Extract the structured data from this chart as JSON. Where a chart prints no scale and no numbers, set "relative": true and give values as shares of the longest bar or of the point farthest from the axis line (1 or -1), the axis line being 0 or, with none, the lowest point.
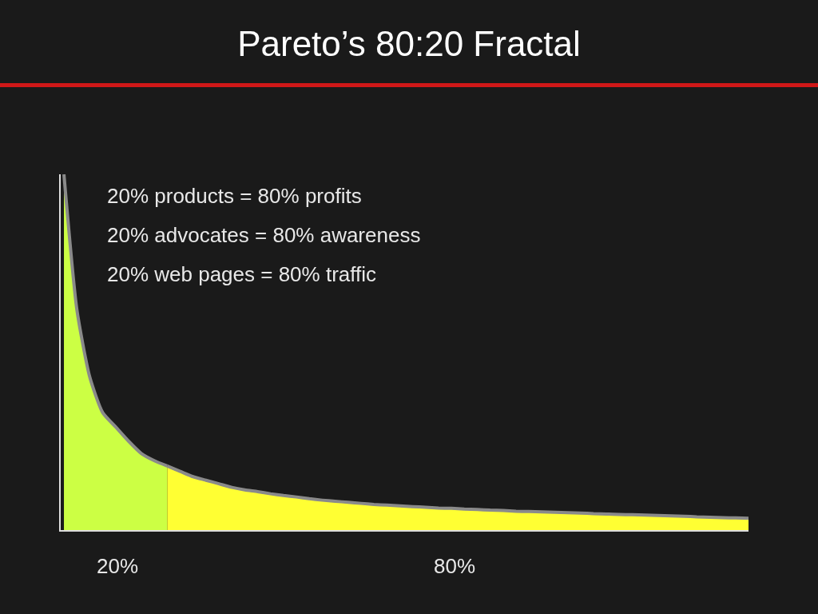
{
  "chart_data": {
    "type": "area",
    "title": "Pareto’s 80:20 Fractal",
    "relative": true,
    "categories": [
      null,
      null,
      null,
      null,
      null,
      null,
      null,
      null,
      null,
      null,
      null,
      null,
      null,
      null,
      null,
      null,
      null,
      null,
      null,
      null,
      null,
      null,
      null,
      null,
      null,
      null,
      null,
      null,
      null,
      null,
      null,
      null,
      null,
      null,
      null,
      null,
      null,
      null,
      null,
      null,
      null,
      null,
      null,
      null,
      null,
      null,
      null,
      null,
      null,
      null,
      null,
      null,
      null,
      null
    ],
    "series": [
      {
        "color": "#ccff44",
        "values": [
          1.0,
          0.62,
          0.43,
          0.33,
          0.29,
          0.25,
          0.215,
          0.195,
          0.18,
          null,
          null,
          null,
          null,
          null,
          null,
          null,
          null,
          null,
          null,
          null,
          null,
          null,
          null,
          null,
          null,
          null,
          null,
          null,
          null,
          null,
          null,
          null,
          null,
          null,
          null,
          null,
          null,
          null,
          null,
          null,
          null,
          null,
          null,
          null,
          null,
          null,
          null,
          null,
          null,
          null,
          null,
          null,
          null,
          null
        ]
      },
      {
        "color": "#ffff33",
        "values": [
          null,
          null,
          null,
          null,
          null,
          null,
          null,
          null,
          0.18,
          0.165,
          0.15,
          0.14,
          0.13,
          0.12,
          0.113,
          0.108,
          0.102,
          0.097,
          0.093,
          0.088,
          0.084,
          0.081,
          0.078,
          0.075,
          0.072,
          0.07,
          0.068,
          0.066,
          0.064,
          0.062,
          0.061,
          0.059,
          0.058,
          0.056,
          0.055,
          0.053,
          0.052,
          0.051,
          0.05,
          0.049,
          0.048,
          0.046,
          0.045,
          0.044,
          0.043,
          0.042,
          0.041,
          0.04,
          0.039,
          0.037,
          0.036,
          0.035,
          0.034,
          0.033
        ]
      }
    ],
    "annotations": [
      "20% products = 80% profits",
      "20% advocates = 80% awareness",
      "20% web pages = 80% traffic",
      "20%",
      "80%"
    ]
  }
}
